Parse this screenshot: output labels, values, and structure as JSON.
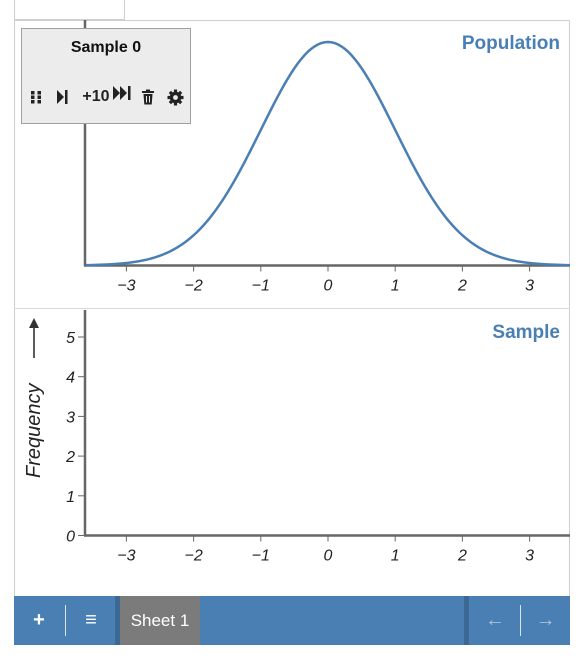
{
  "control_panel": {
    "title": "Sample 0",
    "add_10_label": "+10",
    "icons": [
      "drag-handle-icon",
      "step-forward-icon",
      "fast-forward-icon",
      "trash-icon",
      "gear-icon"
    ]
  },
  "population_panel": {
    "title": "Population",
    "x_ticks": [
      "−3",
      "−2",
      "−1",
      "0",
      "1",
      "2",
      "3"
    ]
  },
  "sample_panel": {
    "title": "Sample",
    "y_axis_label": "Frequency",
    "x_ticks": [
      "−3",
      "−2",
      "−1",
      "0",
      "1",
      "2",
      "3"
    ],
    "y_ticks": [
      "0",
      "1",
      "2",
      "3",
      "4",
      "5"
    ]
  },
  "bottom_bar": {
    "add_label": "+",
    "menu_label": "≡",
    "sheet_tab_label": "Sheet 1",
    "prev_label": "←",
    "next_label": "→"
  },
  "colors": {
    "accent": "#4a7fb4",
    "curve": "#4a7fb4",
    "sheet_tab": "#7b7b7b"
  },
  "chart_data": [
    {
      "type": "line",
      "title": "Population",
      "description_series": "standard normal density curve",
      "x": [
        -3.6,
        -3,
        -2.5,
        -2,
        -1.5,
        -1,
        -0.5,
        0,
        0.5,
        1,
        1.5,
        2,
        2.5,
        3,
        3.6
      ],
      "y": [
        0.0006,
        0.0044,
        0.0175,
        0.054,
        0.1295,
        0.242,
        0.3521,
        0.3989,
        0.3521,
        0.242,
        0.1295,
        0.054,
        0.0175,
        0.0044,
        0.0006
      ],
      "xlim": [
        -3.6,
        3.6
      ],
      "x_ticks": [
        -3,
        -2,
        -1,
        0,
        1,
        2,
        3
      ],
      "grid": false
    },
    {
      "type": "bar",
      "title": "Sample",
      "ylabel": "Frequency",
      "values": [],
      "xlim": [
        -3.6,
        3.6
      ],
      "ylim": [
        0,
        5.6
      ],
      "x_ticks": [
        -3,
        -2,
        -1,
        0,
        1,
        2,
        3
      ],
      "y_ticks": [
        0,
        1,
        2,
        3,
        4,
        5
      ],
      "grid": false
    }
  ]
}
